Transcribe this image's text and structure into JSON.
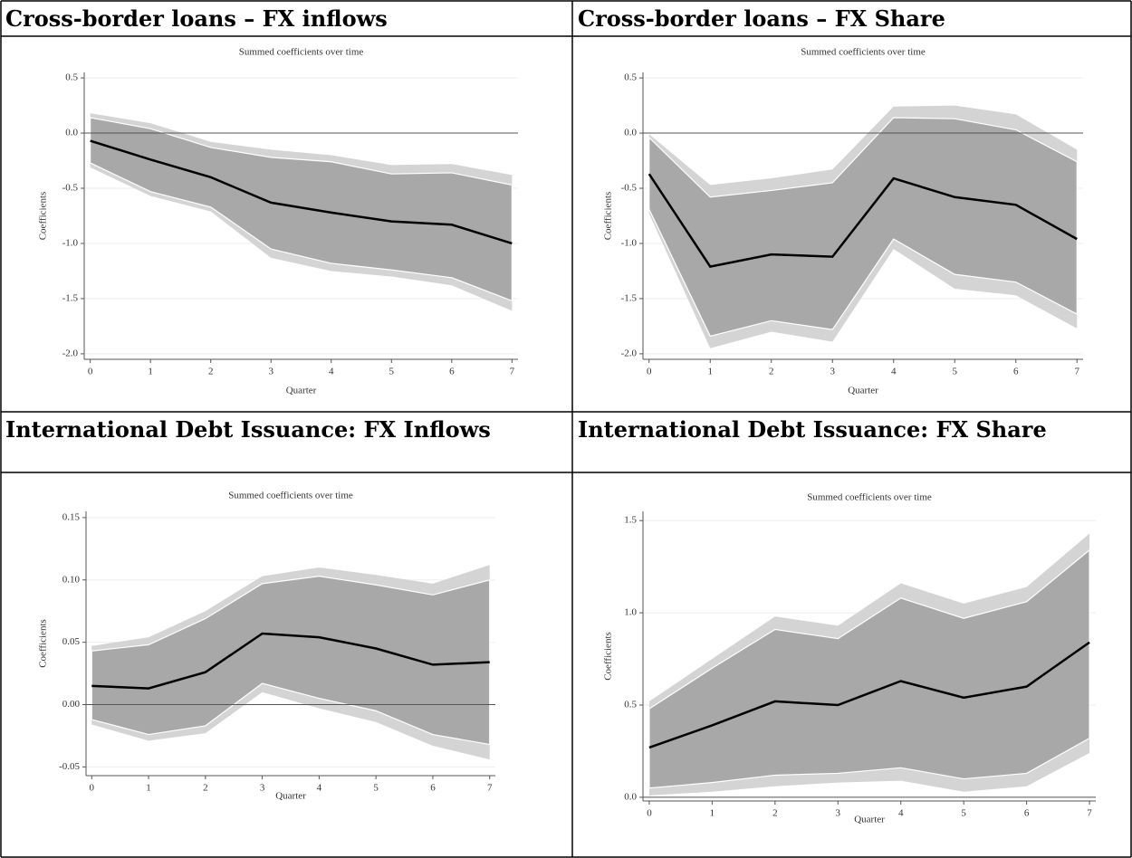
{
  "chart_data": [
    {
      "type": "band-line",
      "heading": "Cross-border loans – FX inflows",
      "title": "Summed coefficients over time",
      "x_label": "Quarter",
      "y_label": "Coefficients",
      "x": [
        0,
        1,
        2,
        3,
        4,
        5,
        6,
        7
      ],
      "values": [
        -0.07,
        -0.24,
        -0.4,
        -0.63,
        -0.72,
        -0.8,
        -0.83,
        -1.0
      ],
      "band_inner": {
        "upper": [
          0.14,
          0.04,
          -0.13,
          -0.22,
          -0.26,
          -0.37,
          -0.36,
          -0.47
        ],
        "lower": [
          -0.27,
          -0.53,
          -0.67,
          -1.05,
          -1.18,
          -1.24,
          -1.31,
          -1.52
        ]
      },
      "band_outer": {
        "upper": [
          0.18,
          0.09,
          -0.08,
          -0.15,
          -0.2,
          -0.29,
          -0.28,
          -0.38
        ],
        "lower": [
          -0.31,
          -0.57,
          -0.71,
          -1.13,
          -1.25,
          -1.3,
          -1.38,
          -1.61
        ]
      },
      "hline": 0,
      "color": "#000000",
      "band_colors": [
        "#d4d4d4",
        "#a8a8a8"
      ],
      "xlim": [
        -0.1,
        7.1
      ],
      "xticks": [
        0,
        1,
        2,
        3,
        4,
        5,
        6,
        7
      ],
      "ylim": [
        -2.05,
        0.55
      ],
      "yticks": [
        0.5,
        {
          "value": 0,
          "label": "0.0"
        },
        -0.5,
        {
          "value": -1,
          "label": "-1.0"
        },
        -1.5,
        {
          "value": -2,
          "label": "-2.0"
        }
      ],
      "grid": true
    },
    {
      "type": "band-line",
      "heading": "Cross-border loans – FX Share",
      "title": "Summed coefficients over time",
      "x_label": "Quarter",
      "y_label": "Coefficients",
      "x": [
        0,
        1,
        2,
        3,
        4,
        5,
        6,
        7
      ],
      "values": [
        -0.37,
        -1.21,
        -1.1,
        -1.12,
        -0.41,
        -0.58,
        -0.65,
        -0.96
      ],
      "band_inner": {
        "upper": [
          -0.04,
          -0.58,
          -0.52,
          -0.45,
          0.14,
          0.13,
          0.03,
          -0.26
        ],
        "lower": [
          -0.69,
          -1.84,
          -1.7,
          -1.78,
          -0.96,
          -1.28,
          -1.35,
          -1.64
        ]
      },
      "band_outer": {
        "upper": [
          -0.01,
          -0.47,
          -0.41,
          -0.33,
          0.24,
          0.25,
          0.17,
          -0.15
        ],
        "lower": [
          -0.73,
          -1.95,
          -1.8,
          -1.89,
          -1.05,
          -1.41,
          -1.47,
          -1.77
        ]
      },
      "hline": 0,
      "color": "#000000",
      "band_colors": [
        "#d4d4d4",
        "#a8a8a8"
      ],
      "xlim": [
        -0.1,
        7.1
      ],
      "xticks": [
        0,
        1,
        2,
        3,
        4,
        5,
        6,
        7
      ],
      "ylim": [
        -2.05,
        0.55
      ],
      "yticks": [
        0.5,
        {
          "value": 0,
          "label": "0.0"
        },
        -0.5,
        {
          "value": -1,
          "label": "-1.0"
        },
        -1.5,
        {
          "value": -2,
          "label": "-2.0"
        }
      ],
      "grid": true
    },
    {
      "type": "band-line",
      "heading": "International Debt Issuance: FX Inflows",
      "title": "Summed coefficients over time",
      "x_label": "Quarter",
      "y_label": "Coefficients",
      "x": [
        0,
        1,
        2,
        3,
        4,
        5,
        6,
        7
      ],
      "values": [
        0.015,
        0.013,
        0.026,
        0.057,
        0.054,
        0.045,
        0.032,
        0.034
      ],
      "band_inner": {
        "upper": [
          0.043,
          0.048,
          0.069,
          0.097,
          0.103,
          0.096,
          0.088,
          0.1
        ],
        "lower": [
          -0.012,
          -0.024,
          -0.017,
          0.017,
          0.005,
          -0.005,
          -0.024,
          -0.032
        ]
      },
      "band_outer": {
        "upper": [
          0.047,
          0.054,
          0.075,
          0.103,
          0.11,
          0.104,
          0.097,
          0.112
        ],
        "lower": [
          -0.016,
          -0.029,
          -0.023,
          0.01,
          -0.003,
          -0.014,
          -0.033,
          -0.044
        ]
      },
      "hline": 0,
      "color": "#000000",
      "band_colors": [
        "#d4d4d4",
        "#a8a8a8"
      ],
      "xlim": [
        -0.1,
        7.1
      ],
      "xticks": [
        0,
        1,
        2,
        3,
        4,
        5,
        6,
        7
      ],
      "ylim": [
        -0.057,
        0.155
      ],
      "yticks": [
        0.15,
        {
          "value": 0.1,
          "label": "0.10"
        },
        0.05,
        {
          "value": 0,
          "label": "0.00"
        },
        -0.05
      ],
      "grid": true
    },
    {
      "type": "band-line",
      "heading": "International Debt Issuance: FX Share",
      "title": "Summed coefficients over time",
      "x_label": "Quarter",
      "y_label": "Coefficients",
      "x": [
        0,
        1,
        2,
        3,
        4,
        5,
        6,
        7
      ],
      "values": [
        0.27,
        0.39,
        0.52,
        0.5,
        0.63,
        0.54,
        0.6,
        0.84
      ],
      "band_inner": {
        "upper": [
          0.48,
          0.7,
          0.91,
          0.86,
          1.08,
          0.97,
          1.06,
          1.34
        ],
        "lower": [
          0.05,
          0.08,
          0.12,
          0.13,
          0.16,
          0.1,
          0.13,
          0.32
        ]
      },
      "band_outer": {
        "upper": [
          0.52,
          0.75,
          0.98,
          0.93,
          1.16,
          1.05,
          1.14,
          1.43
        ],
        "lower": [
          0.01,
          0.03,
          0.06,
          0.08,
          0.09,
          0.03,
          0.06,
          0.24
        ]
      },
      "hline": 0,
      "color": "#000000",
      "band_colors": [
        "#d4d4d4",
        "#a8a8a8"
      ],
      "xlim": [
        -0.1,
        7.1
      ],
      "xticks": [
        0,
        1,
        2,
        3,
        4,
        5,
        6,
        7
      ],
      "ylim": [
        -0.02,
        1.55
      ],
      "yticks": [
        {
          "value": 0,
          "label": "0.0"
        },
        0.5,
        {
          "value": 1,
          "label": "1.0"
        },
        1.5
      ],
      "grid": true
    }
  ]
}
